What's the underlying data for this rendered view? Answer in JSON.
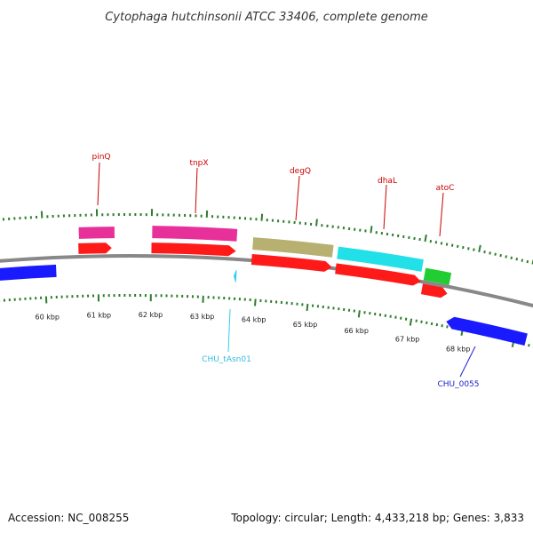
{
  "title": "Cytophaga hutchinsonii ATCC 33406, complete genome",
  "footer": {
    "accession": "Accession: NC_008255",
    "stats": "Topology: circular; Length: 4,433,218 bp; Genes: 3,833"
  },
  "colors": {
    "backbone": "#888888",
    "ticks": "#2e7d2e",
    "cds": "#ff1a1a",
    "label_red": "#cc0000",
    "reverse": "#1a1aff",
    "trna": "#33ccee"
  },
  "tick_labels": [
    "60 kbp",
    "61 kbp",
    "62 kbp",
    "63 kbp",
    "64 kbp",
    "65 kbp",
    "66 kbp",
    "67 kbp",
    "68 kbp"
  ],
  "gene_labels": {
    "pinQ": "pinQ",
    "tnpX": "tnpX",
    "degQ": "degQ",
    "dhaL": "dhaL",
    "atoC": "atoC",
    "trna": "CHU_tAsn01",
    "chu0055": "CHU_0055"
  },
  "cog_colors": {
    "pinQ": "#e8309a",
    "tnpX": "#e8309a",
    "degQ": "#b8b070",
    "dhaL": "#22e0e8",
    "atoC": "#22cc33"
  }
}
